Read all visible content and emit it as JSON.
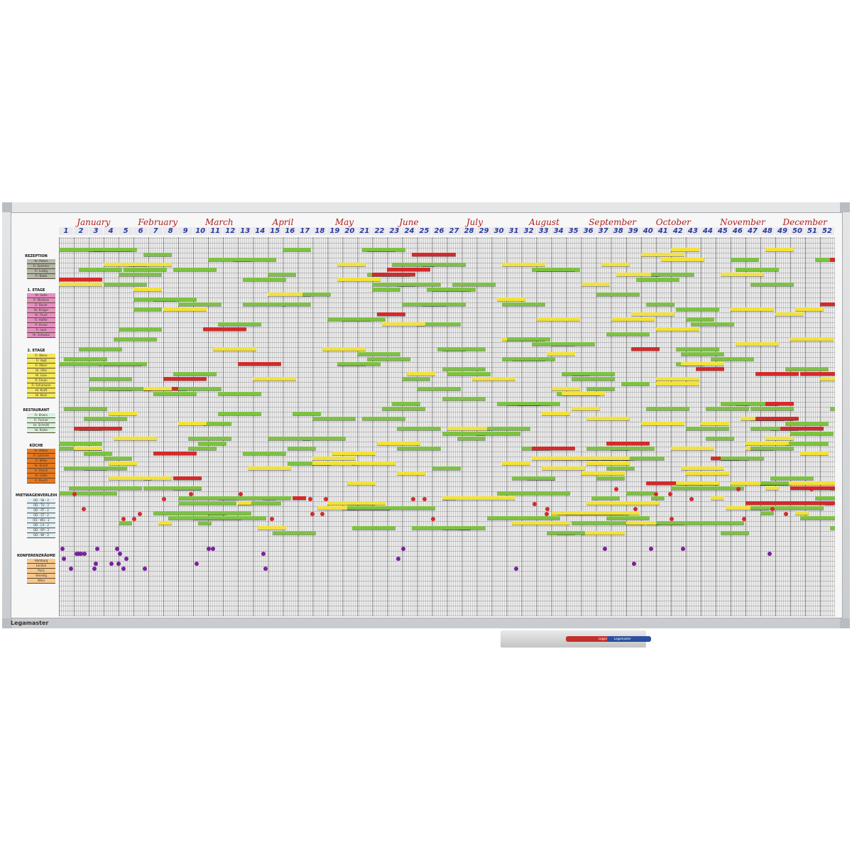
{
  "board": {
    "brand": "Legamaster"
  },
  "months": [
    "January",
    "February",
    "March",
    "April",
    "May",
    "June",
    "July",
    "August",
    "September",
    "October",
    "November",
    "December"
  ],
  "weeks": [
    "1",
    "2",
    "3",
    "4",
    "5",
    "6",
    "7",
    "8",
    "9",
    "10",
    "11",
    "12",
    "13",
    "14",
    "15",
    "16",
    "17",
    "18",
    "19",
    "20",
    "21",
    "22",
    "23",
    "24",
    "25",
    "26",
    "27",
    "28",
    "29",
    "30",
    "31",
    "32",
    "33",
    "34",
    "35",
    "36",
    "37",
    "38",
    "39",
    "40",
    "41",
    "42",
    "43",
    "44",
    "45",
    "46",
    "47",
    "48",
    "49",
    "50",
    "51",
    "52"
  ],
  "sections": [
    {
      "title": "REZEPTION",
      "color": "#b5b8a8",
      "names": [
        "Hr. Peters",
        "Fr. Sommer",
        "Fr. Lustig",
        "Fr. Nawa"
      ]
    },
    {
      "title": "1. ETAGE",
      "color": "#e58fc0",
      "names": [
        "Hr. Sube",
        "Fr. Martens",
        "Fr. Bauer",
        "Hr. Krüger",
        "Hr. Faust",
        "Fr. Hoffer",
        "Fr. Kruse",
        "Fr. Lent",
        "Hr. Schwarz"
      ]
    },
    {
      "title": "2. ETAGE",
      "color": "#f3e85a",
      "names": [
        "Fr. Weiss",
        "Fr. Vogt",
        "Fr. Meier",
        "Hr. Uhle",
        "Hr. Lose",
        "Fr. Fasan",
        "Fr. Schumann",
        "Hr. Kraft",
        "Hr. Kock"
      ]
    },
    {
      "title": "RESTAURANT",
      "color": "#d8f0dc",
      "names": [
        "Fr. Ehlers",
        "Fr. Fischer",
        "Hr. Schmitt",
        "Hr. Kiebe"
      ]
    },
    {
      "title": "KÜCHE",
      "color": "#e8791e",
      "names": [
        "Hr. Müller",
        "Fr. Lammer",
        "Fr. Wilke",
        "Hr. Busch",
        "Fr. Hirsch",
        "Hr. Löwe",
        "Fr. Busch"
      ]
    },
    {
      "title": "MIETWAGENVERLEIH",
      "color": "#dff0f7",
      "names": [
        "OD - SK - 2",
        "OD - TU - 2",
        "OD - RT - 2",
        "OD - ST - 2",
        "OD - WU - 2",
        "OD - LA - 2",
        "OD - OP - 2",
        "OD - WI - 2"
      ]
    },
    {
      "title": "KONFERENZRÄUME",
      "color": "#f6c88c",
      "names": [
        "Hamburg",
        "London",
        "Paris",
        "Venedig",
        "Wien"
      ]
    }
  ],
  "colors": {
    "green": "#7dc242",
    "yellow": "#f2e23a",
    "red": "#d42a2a",
    "purple": "#7a1fa0"
  },
  "tray": {
    "marker_red": "Legamaster",
    "marker_blue": "Legamaster"
  }
}
